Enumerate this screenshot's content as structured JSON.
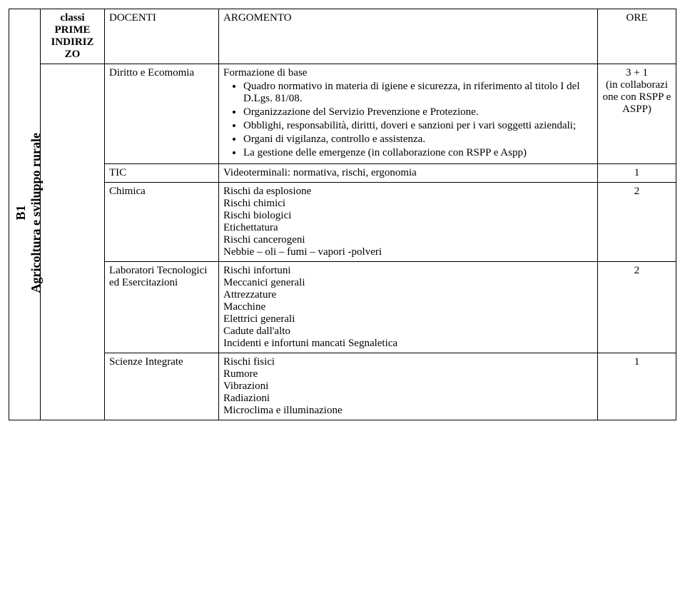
{
  "header": {
    "classi": "classi PRIME INDIRIZ ZO",
    "docenti": "DOCENTI",
    "argomento": "ARGOMENTO",
    "ore": "ORE"
  },
  "vertical_label": "B1\nAgricoltura e sviluppo rurale",
  "rows": [
    {
      "docenti": "Diritto e Ecomomia",
      "arg_title": "Formazione di base",
      "bullets": [
        "Quadro normativo in materia di igiene e sicurezza, in riferimento al titolo I del D.Lgs. 81/08.",
        "Organizzazione del Servizio Prevenzione e Protezione.",
        "Obblighi, responsabilità, diritti, doveri e sanzioni per i vari soggetti aziendali;",
        "Organi di vigilanza, controllo e assistenza.",
        "La gestione delle emergenze (in collaborazione con RSPP e Aspp)"
      ],
      "ore": "3 + 1\n(in collaborazi one con RSPP e ASPP)"
    },
    {
      "docenti": "TIC",
      "arg_lines": [
        "Videoterminali: normativa, rischi, ergonomia"
      ],
      "ore": "1"
    },
    {
      "docenti": "Chimica",
      "arg_lines": [
        "Rischi da esplosione",
        "Rischi chimici",
        "Rischi biologici",
        "Etichettatura",
        "Rischi cancerogeni",
        "Nebbie – oli – fumi – vapori -polveri"
      ],
      "ore": "2"
    },
    {
      "docenti": "Laboratori Tecnologici ed Esercitazioni",
      "arg_lines": [
        "Rischi infortuni",
        "Meccanici generali",
        "Attrezzature",
        "Macchine",
        "Elettrici generali",
        "Cadute dall'alto",
        "Incidenti e infortuni mancati Segnaletica"
      ],
      "ore": "2"
    },
    {
      "docenti": "Scienze Integrate",
      "arg_lines": [
        "Rischi fisici",
        "Rumore",
        "Vibrazioni",
        "Radiazioni",
        "Microclima e illuminazione"
      ],
      "ore": "1"
    }
  ]
}
